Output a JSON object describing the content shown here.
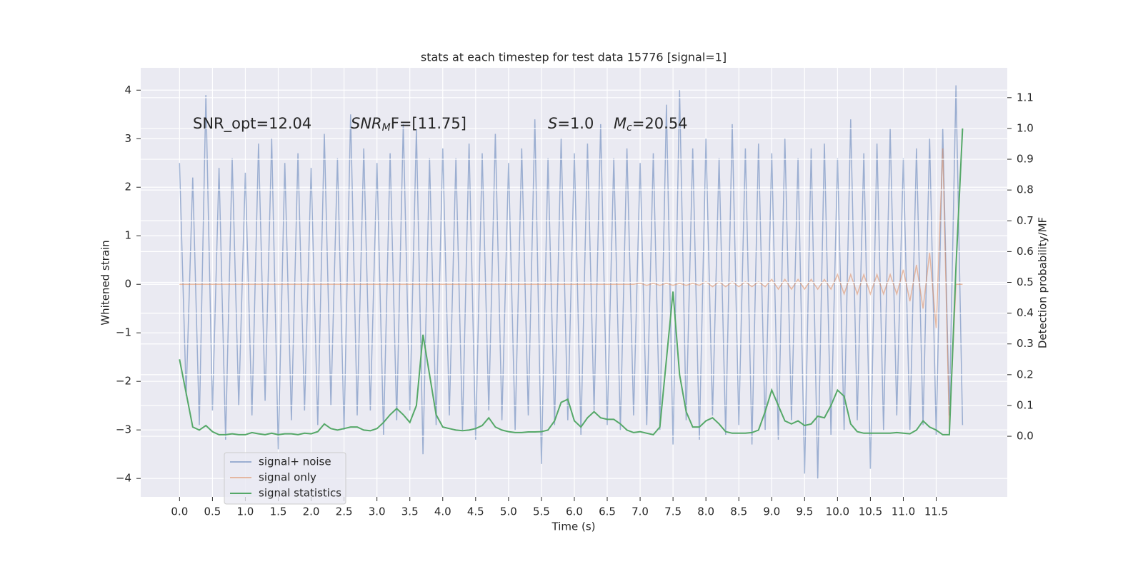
{
  "chart_data": {
    "type": "line",
    "title": "stats at each timestep for test data 15776 [signal=1]",
    "xlabel": "Time (s)",
    "ylabel": "Whitened strain",
    "y2label": "Detection probability/MF",
    "annotations": [
      [
        {
          "text": "SNR_opt=12.04"
        }
      ],
      [
        {
          "text": "SNR",
          "italic": true
        },
        {
          "text": "M",
          "italic": true,
          "sub": true
        },
        {
          "text": "F=[11.75]"
        }
      ],
      [
        {
          "text": "S",
          "italic": true
        },
        {
          "text": "=1.0"
        }
      ],
      [
        {
          "text": "M",
          "italic": true
        },
        {
          "text": "c",
          "italic": true,
          "sub": true
        },
        {
          "text": "=20.54"
        }
      ]
    ],
    "x": [
      0,
      0.1,
      0.2,
      0.3,
      0.4,
      0.5,
      0.6,
      0.7,
      0.8,
      0.9,
      1,
      1.1,
      1.2,
      1.3,
      1.4,
      1.5,
      1.6,
      1.7,
      1.8,
      1.9,
      2,
      2.1,
      2.2,
      2.3,
      2.4,
      2.5,
      2.6,
      2.7,
      2.8,
      2.9,
      3,
      3.1,
      3.2,
      3.3,
      3.4,
      3.5,
      3.6,
      3.7,
      3.8,
      3.9,
      4,
      4.1,
      4.2,
      4.3,
      4.4,
      4.5,
      4.6,
      4.7,
      4.8,
      4.9,
      5,
      5.1,
      5.2,
      5.3,
      5.4,
      5.5,
      5.6,
      5.7,
      5.8,
      5.9,
      6,
      6.1,
      6.2,
      6.3,
      6.4,
      6.5,
      6.6,
      6.7,
      6.8,
      6.9,
      7,
      7.1,
      7.2,
      7.3,
      7.4,
      7.5,
      7.6,
      7.7,
      7.8,
      7.9,
      8,
      8.1,
      8.2,
      8.3,
      8.4,
      8.5,
      8.6,
      8.7,
      8.8,
      8.9,
      9,
      9.1,
      9.2,
      9.3,
      9.4,
      9.5,
      9.6,
      9.7,
      9.8,
      9.9,
      10,
      10.1,
      10.2,
      10.3,
      10.4,
      10.5,
      10.6,
      10.7,
      10.8,
      10.9,
      11,
      11.1,
      11.2,
      11.3,
      11.4,
      11.5,
      11.6,
      11.7,
      11.8,
      11.9
    ],
    "series": [
      {
        "name": "signal+ noise",
        "color": "#4c72b0",
        "opacity": 0.5,
        "axis": "y",
        "values": [
          2.5,
          -2.3,
          2.2,
          -2.9,
          3.9,
          -2.6,
          2.4,
          -3.2,
          2.6,
          -2.5,
          2.3,
          -2.7,
          2.9,
          -2.4,
          3.0,
          -3.4,
          2.5,
          -2.8,
          2.7,
          -2.6,
          2.4,
          -2.9,
          3.1,
          -2.5,
          2.6,
          -3.0,
          3.5,
          -2.7,
          2.8,
          -2.6,
          2.5,
          -3.1,
          2.7,
          -2.8,
          3.3,
          -2.6,
          3.2,
          -3.5,
          2.6,
          -2.9,
          2.8,
          -2.7,
          2.6,
          -3.0,
          2.9,
          -3.2,
          2.7,
          -2.6,
          3.1,
          -2.8,
          2.5,
          -3.0,
          2.8,
          -2.7,
          3.4,
          -3.7,
          2.6,
          -2.9,
          3.0,
          -2.8,
          2.7,
          -3.1,
          2.9,
          -2.6,
          3.3,
          -2.9,
          2.6,
          -3.0,
          2.8,
          -2.7,
          2.5,
          -2.9,
          2.7,
          -3.0,
          3.7,
          -3.3,
          4.0,
          -2.8,
          2.8,
          -3.2,
          3.0,
          -2.7,
          2.6,
          -3.1,
          3.3,
          -2.9,
          2.8,
          -3.3,
          2.9,
          -3.0,
          2.7,
          -3.2,
          3.0,
          -2.8,
          2.6,
          -3.9,
          2.8,
          -4.0,
          2.9,
          -3.1,
          2.6,
          -3.0,
          3.4,
          -2.8,
          2.7,
          -3.8,
          2.9,
          -3.0,
          3.2,
          -2.7,
          2.6,
          -3.0,
          2.8,
          -2.9,
          3.0,
          -3.1,
          3.2,
          -2.7,
          4.1,
          -2.9
        ]
      },
      {
        "name": "signal only",
        "color": "#dd8452",
        "opacity": 0.5,
        "axis": "y",
        "values": [
          0,
          0,
          0,
          0,
          0,
          0,
          0,
          0,
          0,
          0,
          0,
          0,
          0,
          0,
          0,
          0,
          0,
          0,
          0,
          0,
          0,
          0,
          0,
          0,
          0,
          0,
          0,
          0,
          0,
          0,
          0,
          0,
          0,
          0,
          0,
          0,
          0,
          0,
          0,
          0,
          0,
          0,
          0,
          0,
          0,
          0,
          0,
          0,
          0,
          0,
          0,
          0,
          0,
          0,
          0,
          0,
          0,
          0,
          0,
          0,
          0,
          0,
          0,
          0,
          0,
          0,
          0,
          0,
          0,
          0,
          0.02,
          -0.02,
          0.02,
          -0.02,
          0.02,
          -0.02,
          0.02,
          -0.02,
          0.02,
          -0.02,
          0.05,
          -0.05,
          0.05,
          -0.05,
          0.05,
          -0.05,
          0.05,
          -0.05,
          0.05,
          -0.05,
          0.1,
          -0.1,
          0.1,
          -0.1,
          0.1,
          -0.1,
          0.1,
          -0.1,
          0.1,
          -0.1,
          0.2,
          -0.2,
          0.2,
          -0.2,
          0.2,
          -0.2,
          0.2,
          -0.2,
          0.2,
          -0.2,
          0.3,
          -0.35,
          0.4,
          -0.5,
          0.65,
          -0.9,
          2.8,
          -3.0,
          0,
          0
        ]
      },
      {
        "name": "signal statistics",
        "color": "#55a868",
        "opacity": 1,
        "axis": "y2",
        "values": [
          0.25,
          0.14,
          0.03,
          0.02,
          0.035,
          0.015,
          0.005,
          0.005,
          0.008,
          0.005,
          0.005,
          0.012,
          0.008,
          0.005,
          0.01,
          0.005,
          0.008,
          0.008,
          0.005,
          0.01,
          0.008,
          0.015,
          0.04,
          0.025,
          0.02,
          0.025,
          0.03,
          0.03,
          0.02,
          0.018,
          0.025,
          0.045,
          0.07,
          0.09,
          0.07,
          0.045,
          0.1,
          0.33,
          0.2,
          0.07,
          0.03,
          0.025,
          0.02,
          0.018,
          0.02,
          0.025,
          0.035,
          0.06,
          0.03,
          0.02,
          0.015,
          0.012,
          0.012,
          0.014,
          0.014,
          0.015,
          0.02,
          0.05,
          0.11,
          0.12,
          0.05,
          0.03,
          0.06,
          0.08,
          0.06,
          0.055,
          0.055,
          0.04,
          0.02,
          0.012,
          0.015,
          0.01,
          0.005,
          0.03,
          0.25,
          0.47,
          0.2,
          0.08,
          0.03,
          0.03,
          0.05,
          0.06,
          0.04,
          0.015,
          0.01,
          0.01,
          0.01,
          0.012,
          0.02,
          0.08,
          0.15,
          0.1,
          0.05,
          0.04,
          0.05,
          0.035,
          0.04,
          0.065,
          0.06,
          0.1,
          0.15,
          0.13,
          0.04,
          0.015,
          0.01,
          0.01,
          0.01,
          0.01,
          0.01,
          0.012,
          0.01,
          0.008,
          0.02,
          0.05,
          0.03,
          0.02,
          0.005,
          0.005,
          0.55,
          1.0
        ]
      }
    ],
    "xlim": [
      -0.59,
      12.58
    ],
    "ylim": [
      -4.38,
      4.46
    ],
    "y2lim": [
      -0.197,
      1.197
    ],
    "xticks": [
      {
        "value": 0,
        "label": "0.0"
      },
      {
        "value": 0.5,
        "label": "0.5"
      },
      {
        "value": 1,
        "label": "1.0"
      },
      {
        "value": 1.5,
        "label": "1.5"
      },
      {
        "value": 2,
        "label": "2.0"
      },
      {
        "value": 2.5,
        "label": "2.5"
      },
      {
        "value": 3,
        "label": "3.0"
      },
      {
        "value": 3.5,
        "label": "3.5"
      },
      {
        "value": 4,
        "label": "4.0"
      },
      {
        "value": 4.5,
        "label": "4.5"
      },
      {
        "value": 5,
        "label": "5.0"
      },
      {
        "value": 5.5,
        "label": "5.5"
      },
      {
        "value": 6,
        "label": "6.0"
      },
      {
        "value": 6.5,
        "label": "6.5"
      },
      {
        "value": 7,
        "label": "7.0"
      },
      {
        "value": 7.5,
        "label": "7.5"
      },
      {
        "value": 8,
        "label": "8.0"
      },
      {
        "value": 8.5,
        "label": "8.5"
      },
      {
        "value": 9,
        "label": "9.0"
      },
      {
        "value": 9.5,
        "label": "9.5"
      },
      {
        "value": 10,
        "label": "10.0"
      },
      {
        "value": 10.5,
        "label": "10.5"
      },
      {
        "value": 11,
        "label": "11.0"
      },
      {
        "value": 11.5,
        "label": "11.5"
      }
    ],
    "yticks": [
      {
        "value": -4,
        "label": "−4"
      },
      {
        "value": -3,
        "label": "−3"
      },
      {
        "value": -2,
        "label": "−2"
      },
      {
        "value": -1,
        "label": "−1"
      },
      0,
      1,
      2,
      3,
      4
    ],
    "y2ticks": [
      {
        "value": 0,
        "label": "0.0"
      },
      {
        "value": 0.1,
        "label": "0.1"
      },
      {
        "value": 0.2,
        "label": "0.2"
      },
      {
        "value": 0.3,
        "label": "0.3"
      },
      {
        "value": 0.4,
        "label": "0.4"
      },
      {
        "value": 0.5,
        "label": "0.5"
      },
      {
        "value": 0.6,
        "label": "0.6"
      },
      {
        "value": 0.7,
        "label": "0.7"
      },
      {
        "value": 0.8,
        "label": "0.8"
      },
      {
        "value": 0.9,
        "label": "0.9"
      },
      {
        "value": 1,
        "label": "1.0"
      },
      {
        "value": 1.1,
        "label": "1.1"
      }
    ],
    "grid": true,
    "legend": "lower left"
  }
}
